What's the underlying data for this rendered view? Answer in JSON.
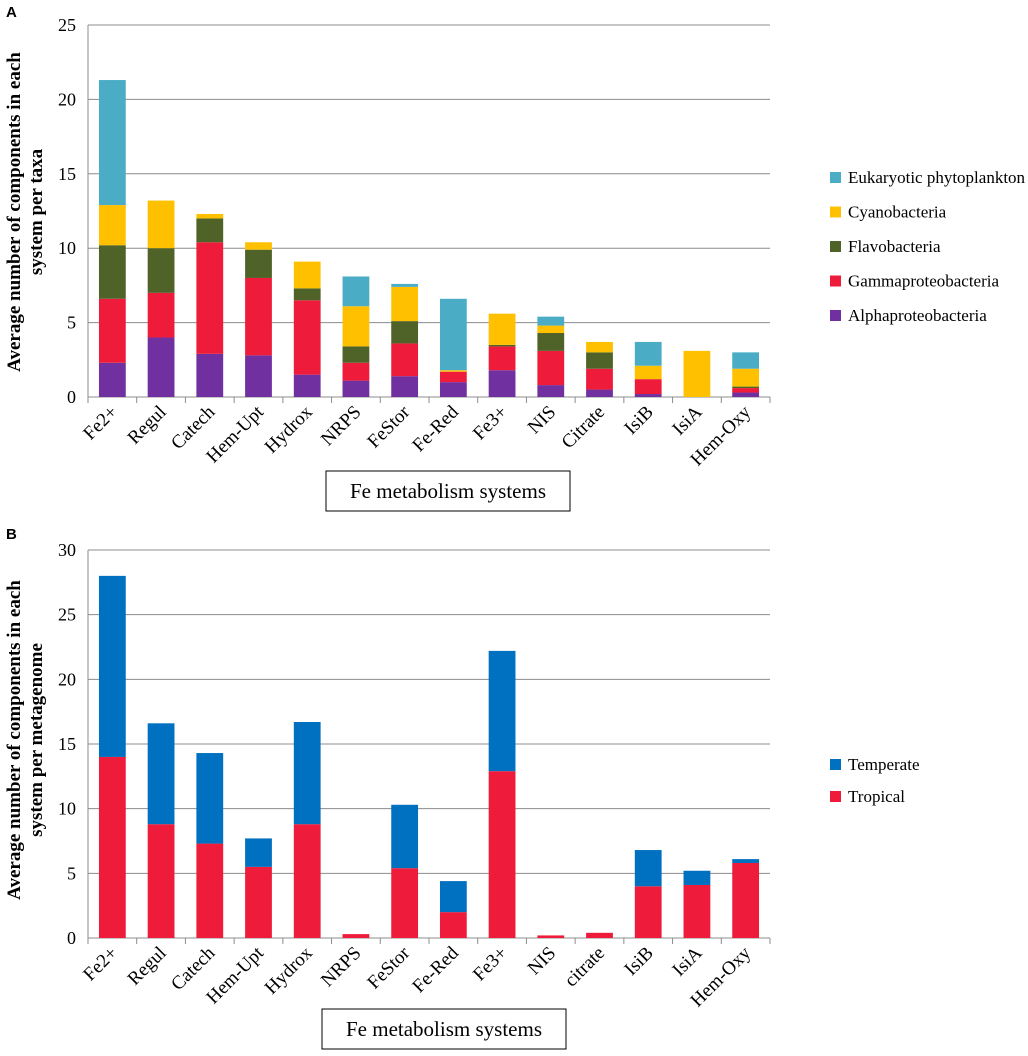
{
  "chart_data": [
    {
      "panel": "A",
      "type": "bar",
      "stacked": true,
      "title": "",
      "xlabel": "Fe metabolism systems",
      "ylabel": "Average number of components in each system per taxa",
      "ylim": [
        0,
        25
      ],
      "yticks": [
        0,
        5,
        10,
        15,
        20,
        25
      ],
      "grid": true,
      "legend_position": "right",
      "categories": [
        "Fe2+",
        "Regul",
        "Catech",
        "Hem-Upt",
        "Hydrox",
        "NRPS",
        "FeStor",
        "Fe-Red",
        "Fe3+",
        "NIS",
        "Citrate",
        "IsiB",
        "IsiA",
        "Hem-Oxy"
      ],
      "series": [
        {
          "name": "Alphaproteobacteria",
          "color": "#7030a0",
          "values": [
            2.3,
            4.0,
            2.9,
            2.8,
            1.5,
            1.1,
            1.4,
            1.0,
            1.8,
            0.8,
            0.5,
            0.2,
            0.0,
            0.3
          ]
        },
        {
          "name": "Gammaproteobacteria",
          "color": "#ee1c3a",
          "values": [
            4.3,
            3.0,
            7.5,
            5.2,
            5.0,
            1.2,
            2.2,
            0.7,
            1.6,
            2.3,
            1.4,
            1.0,
            0.0,
            0.3
          ]
        },
        {
          "name": "Flavobacteria",
          "color": "#4f6228",
          "values": [
            3.6,
            3.0,
            1.6,
            1.9,
            0.8,
            1.1,
            1.5,
            0.0,
            0.1,
            1.2,
            1.1,
            0.0,
            0.0,
            0.1
          ]
        },
        {
          "name": "Cyanobacteria",
          "color": "#ffc000",
          "values": [
            2.7,
            3.2,
            0.3,
            0.5,
            1.8,
            2.7,
            2.3,
            0.1,
            2.1,
            0.5,
            0.7,
            0.9,
            3.1,
            1.2
          ]
        },
        {
          "name": "Eukaryotic phytoplankton",
          "color": "#4bacc6",
          "values": [
            8.4,
            0.0,
            0.0,
            0.0,
            0.0,
            2.0,
            0.2,
            4.8,
            0.0,
            0.6,
            0.0,
            1.6,
            0.0,
            1.1
          ]
        }
      ],
      "legend_order": [
        "Eukaryotic phytoplankton",
        "Cyanobacteria",
        "Flavobacteria",
        "Gammaproteobacteria",
        "Alphaproteobacteria"
      ]
    },
    {
      "panel": "B",
      "type": "bar",
      "stacked": true,
      "title": "",
      "xlabel": "Fe metabolism systems",
      "ylabel": "Average number of components in each system per metagenome",
      "ylim": [
        0,
        30
      ],
      "yticks": [
        0,
        5,
        10,
        15,
        20,
        25,
        30
      ],
      "grid": true,
      "legend_position": "right",
      "categories": [
        "Fe2+",
        "Regul",
        "Catech",
        "Hem-Upt",
        "Hydrox",
        "NRPS",
        "FeStor",
        "Fe-Red",
        "Fe3+",
        "NIS",
        "citrate",
        "IsiB",
        "IsiA",
        "Hem-Oxy"
      ],
      "series": [
        {
          "name": "Tropical",
          "color": "#ee1c3a",
          "values": [
            14.0,
            8.8,
            7.3,
            5.5,
            8.8,
            0.3,
            5.4,
            2.0,
            12.9,
            0.2,
            0.4,
            4.0,
            4.1,
            5.8
          ]
        },
        {
          "name": "Temperate",
          "color": "#0070c0",
          "values": [
            14.0,
            7.8,
            7.0,
            2.2,
            7.9,
            0.0,
            4.9,
            2.4,
            9.3,
            0.0,
            0.0,
            2.8,
            1.1,
            0.3
          ]
        }
      ],
      "legend_order": [
        "Temperate",
        "Tropical"
      ]
    }
  ],
  "panels": {
    "a": {
      "letter": "A",
      "ylabel_line1": "Average number of components in each",
      "ylabel_line2": "system per taxa",
      "xlabel": "Fe metabolism systems"
    },
    "b": {
      "letter": "B",
      "ylabel_line1": "Average number of components in each",
      "ylabel_line2": "system per metagenome",
      "xlabel": "Fe metabolism systems"
    }
  }
}
